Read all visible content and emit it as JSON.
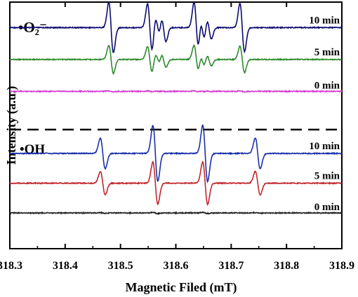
{
  "chart_data": [
    {
      "type": "line",
      "panel": "top",
      "radical_label": "•O₂⁻",
      "xlabel": "Magnetic Filed (mT)",
      "ylabel": "Intensity (a.u.)",
      "xlim": [
        318.3,
        318.9
      ],
      "xticks": [
        "318.3",
        "318.4",
        "318.5",
        "318.6",
        "318.7",
        "318.8",
        "318.9"
      ],
      "line_positions_mT": [
        318.483,
        318.553,
        318.567,
        318.578,
        318.637,
        318.648,
        318.66,
        318.72
      ],
      "line_amplitudes": [
        1.0,
        0.95,
        0.45,
        0.55,
        1.0,
        0.55,
        0.45,
        0.95
      ],
      "series": [
        {
          "name": "10 min",
          "color": "#0a0a6e",
          "relative_intensity": 1.0,
          "baseline": 0.8
        },
        {
          "name": "5 min",
          "color": "#2e8b2e",
          "relative_intensity": 0.55,
          "baseline": 0.55
        },
        {
          "name": "0 min",
          "color": "#d63ad6",
          "relative_intensity": 0.02,
          "baseline": 0.3
        }
      ]
    },
    {
      "type": "line",
      "panel": "bottom",
      "radical_label": "•OH",
      "xlabel": "Magnetic Filed (mT)",
      "ylabel": "Intensity (a.u.)",
      "xlim": [
        318.3,
        318.9
      ],
      "xticks": [
        "318.3",
        "318.4",
        "318.5",
        "318.6",
        "318.7",
        "318.8",
        "318.9"
      ],
      "line_positions_mT": [
        318.468,
        318.563,
        318.653,
        318.748
      ],
      "line_amplitudes": [
        0.55,
        1.0,
        1.0,
        0.55
      ],
      "series": [
        {
          "name": "10 min",
          "color": "#1a2fa8",
          "relative_intensity": 1.0,
          "baseline": 0.8
        },
        {
          "name": "5 min",
          "color": "#c0272d",
          "relative_intensity": 0.75,
          "baseline": 0.55
        },
        {
          "name": "0 min",
          "color": "#222222",
          "relative_intensity": 0.02,
          "baseline": 0.3
        }
      ]
    }
  ]
}
